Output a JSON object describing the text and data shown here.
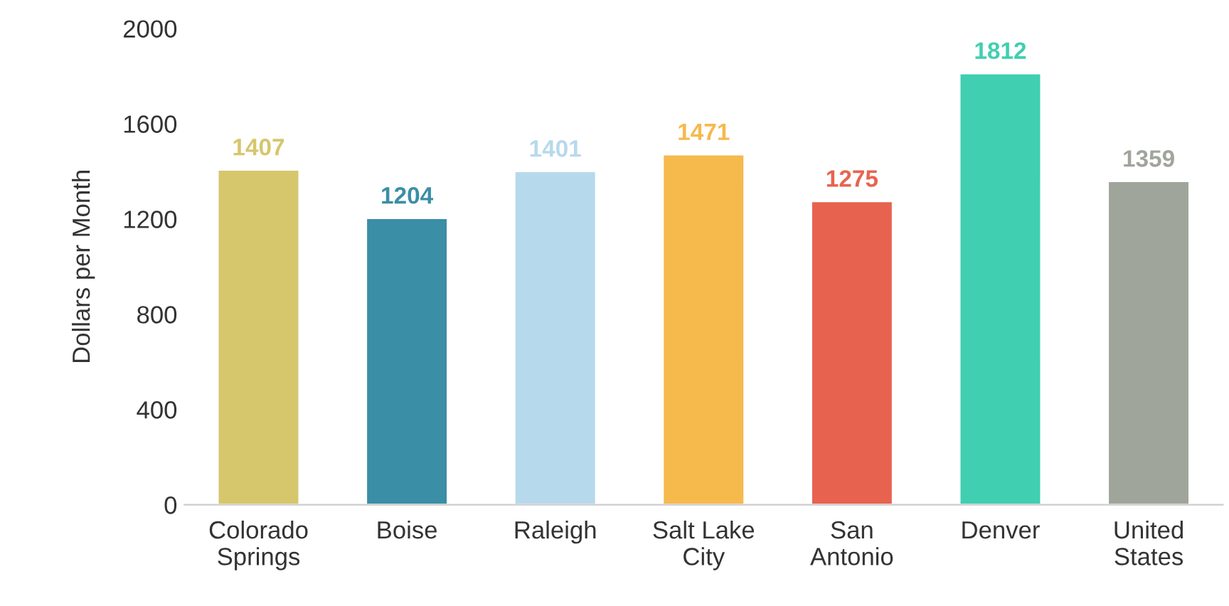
{
  "chart_data": {
    "type": "bar",
    "ylabel": "Dollars per Month",
    "categories": [
      "Colorado\nSprings",
      "Boise",
      "Raleigh",
      "Salt Lake\nCity",
      "San\nAntonio",
      "Denver",
      "United\nStates"
    ],
    "values": [
      1407,
      1204,
      1401,
      1471,
      1275,
      1812,
      1359
    ],
    "colors": [
      "#d6c66c",
      "#3a8ea6",
      "#b7d9ec",
      "#f6b94c",
      "#e8634f",
      "#40cfb0",
      "#a0a59c"
    ],
    "ylim": [
      0,
      2000
    ],
    "yticks": [
      0,
      400,
      800,
      1200,
      1600,
      2000
    ],
    "data_labels": true,
    "grid": false,
    "legend": false
  }
}
